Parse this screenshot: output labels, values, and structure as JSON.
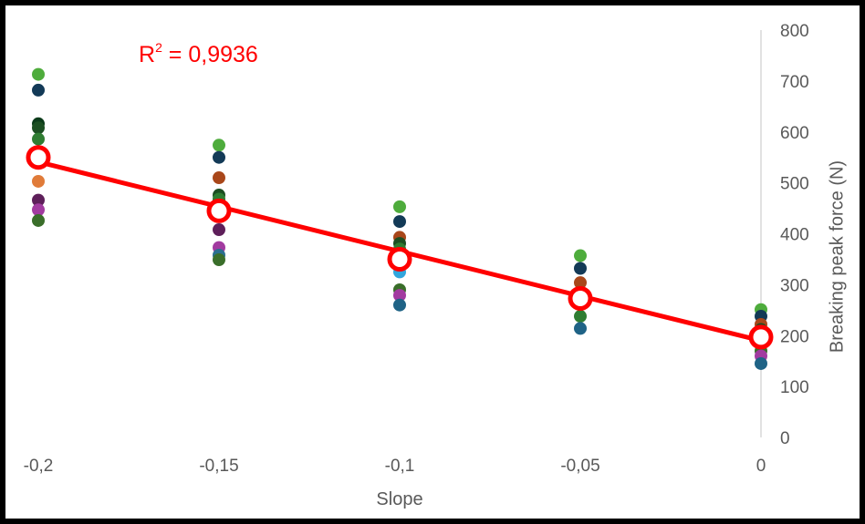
{
  "chart_data": {
    "type": "scatter",
    "title": "",
    "xlabel": "Slope",
    "ylabel": "Breaking peak force (N)",
    "xlim": [
      -0.2,
      0
    ],
    "ylim": [
      0,
      800
    ],
    "x_ticks": [
      -0.2,
      -0.15,
      -0.1,
      -0.05,
      0
    ],
    "x_tick_labels": [
      "-0,2",
      "-0,15",
      "-0,1",
      "-0,05",
      "0"
    ],
    "y_ticks": [
      0,
      100,
      200,
      300,
      400,
      500,
      600,
      700,
      800
    ],
    "y_tick_labels": [
      "0",
      "100",
      "200",
      "300",
      "400",
      "500",
      "600",
      "700",
      "800"
    ],
    "y_axis_side": "right",
    "grid": false,
    "legend": "none",
    "annotation": {
      "r2_label": "R",
      "r2_sup": "2",
      "r2_value": " = 0,9936",
      "color": "#ff0000"
    },
    "scatter_points": [
      {
        "x": -0.2,
        "y": 713,
        "color": "#4eac3c"
      },
      {
        "x": -0.2,
        "y": 682,
        "color": "#133a57"
      },
      {
        "x": -0.2,
        "y": 616,
        "color": "#0b3b1a"
      },
      {
        "x": -0.2,
        "y": 608,
        "color": "#1c4f22"
      },
      {
        "x": -0.2,
        "y": 586,
        "color": "#2f7d32"
      },
      {
        "x": -0.2,
        "y": 503,
        "color": "#e07b39"
      },
      {
        "x": -0.2,
        "y": 466,
        "color": "#5e1f5a"
      },
      {
        "x": -0.2,
        "y": 447,
        "color": "#a23ba0"
      },
      {
        "x": -0.2,
        "y": 426,
        "color": "#3a6e2a"
      },
      {
        "x": -0.15,
        "y": 574,
        "color": "#4eac3c"
      },
      {
        "x": -0.15,
        "y": 550,
        "color": "#133a57"
      },
      {
        "x": -0.15,
        "y": 510,
        "color": "#a9471a"
      },
      {
        "x": -0.15,
        "y": 476,
        "color": "#1c4f22"
      },
      {
        "x": -0.15,
        "y": 468,
        "color": "#2f7d32"
      },
      {
        "x": -0.15,
        "y": 408,
        "color": "#5e1f5a"
      },
      {
        "x": -0.15,
        "y": 373,
        "color": "#a23ba0"
      },
      {
        "x": -0.15,
        "y": 358,
        "color": "#2b6f8f"
      },
      {
        "x": -0.15,
        "y": 349,
        "color": "#3a6e2a"
      },
      {
        "x": -0.1,
        "y": 453,
        "color": "#4eac3c"
      },
      {
        "x": -0.1,
        "y": 424,
        "color": "#133a57"
      },
      {
        "x": -0.1,
        "y": 393,
        "color": "#a9471a"
      },
      {
        "x": -0.1,
        "y": 381,
        "color": "#1c4f22"
      },
      {
        "x": -0.1,
        "y": 370,
        "color": "#2f7d32"
      },
      {
        "x": -0.1,
        "y": 340,
        "color": "#5e1f5a"
      },
      {
        "x": -0.1,
        "y": 325,
        "color": "#31a6dd"
      },
      {
        "x": -0.1,
        "y": 290,
        "color": "#3a6e2a"
      },
      {
        "x": -0.1,
        "y": 279,
        "color": "#a23ba0"
      },
      {
        "x": -0.1,
        "y": 260,
        "color": "#1f6386"
      },
      {
        "x": -0.05,
        "y": 357,
        "color": "#4eac3c"
      },
      {
        "x": -0.05,
        "y": 332,
        "color": "#133a57"
      },
      {
        "x": -0.05,
        "y": 304,
        "color": "#a9471a"
      },
      {
        "x": -0.05,
        "y": 262,
        "color": "#5e1f5a"
      },
      {
        "x": -0.05,
        "y": 238,
        "color": "#2f7d32"
      },
      {
        "x": -0.05,
        "y": 214,
        "color": "#1f6386"
      },
      {
        "x": 0,
        "y": 251,
        "color": "#4eac3c"
      },
      {
        "x": 0,
        "y": 238,
        "color": "#133a57"
      },
      {
        "x": 0,
        "y": 222,
        "color": "#a9471a"
      },
      {
        "x": 0,
        "y": 212,
        "color": "#1c4f22"
      },
      {
        "x": 0,
        "y": 186,
        "color": "#2f7d32"
      },
      {
        "x": 0,
        "y": 170,
        "color": "#3a6e2a"
      },
      {
        "x": 0,
        "y": 160,
        "color": "#a23ba0"
      },
      {
        "x": 0,
        "y": 145,
        "color": "#1f6386"
      }
    ],
    "mean_series": {
      "x": [
        -0.2,
        -0.15,
        -0.1,
        -0.05,
        0
      ],
      "y": [
        550,
        445,
        350,
        273,
        197
      ],
      "marker": "open-circle",
      "color": "#ff0000"
    },
    "trendline": {
      "x": [
        -0.2,
        0
      ],
      "y": [
        541,
        190
      ],
      "color": "#ff0000"
    }
  }
}
